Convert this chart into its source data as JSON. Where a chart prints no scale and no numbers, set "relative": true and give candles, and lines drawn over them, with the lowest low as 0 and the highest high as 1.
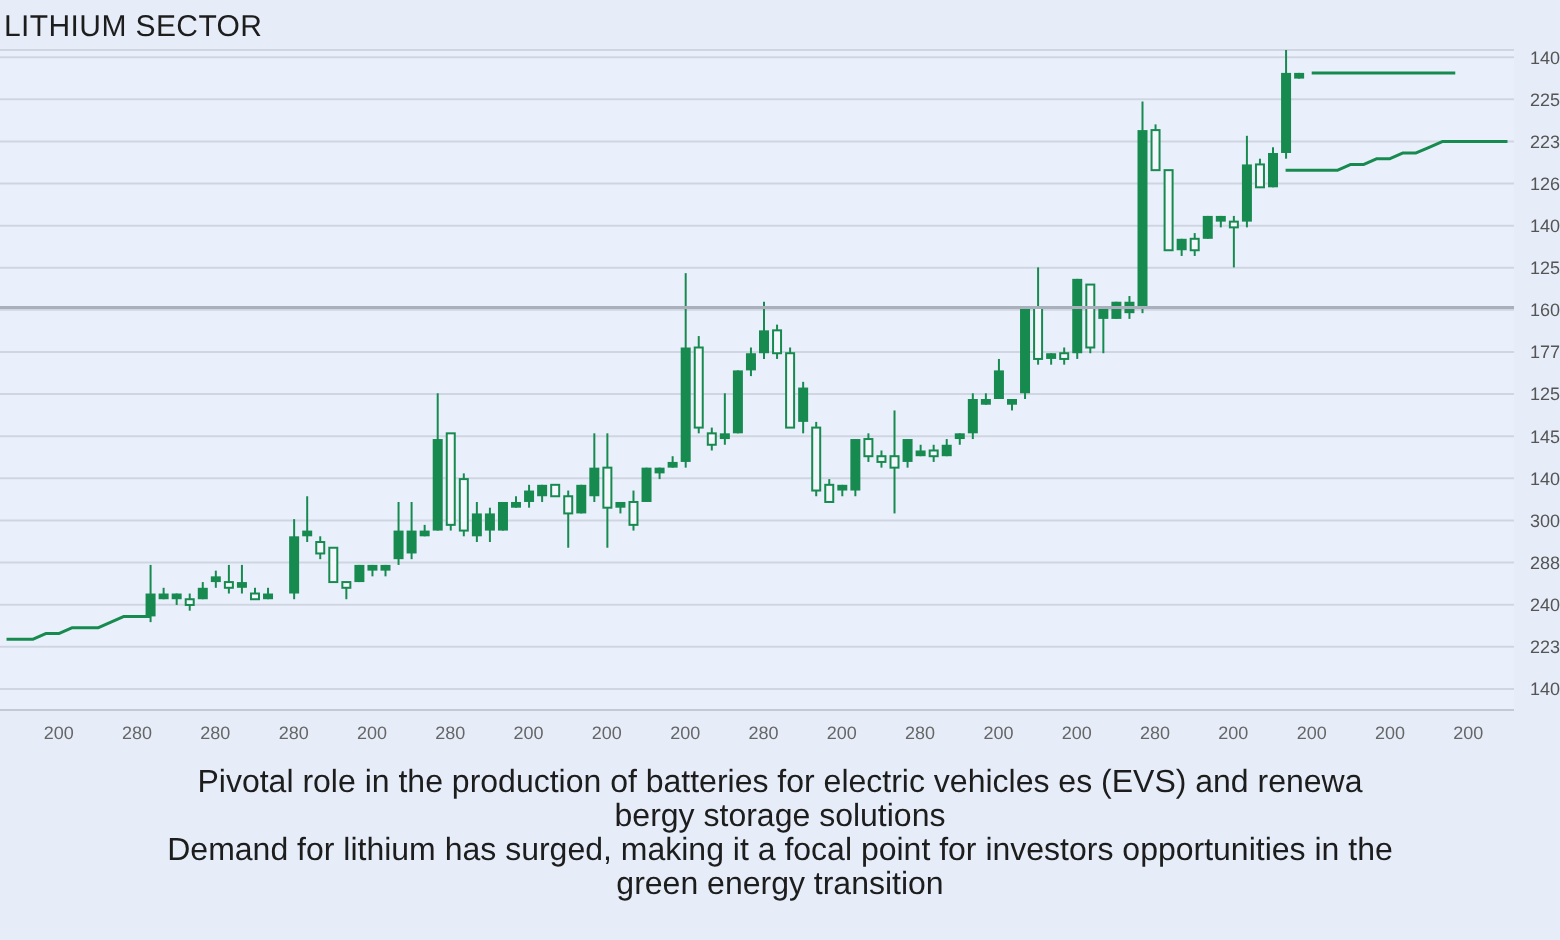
{
  "chart_data": {
    "type": "candlestick",
    "title": "LITHIUM SECTOR",
    "relative": true,
    "annotations": [
      "Pivotal role in the production of batteries for electric vehicles es (EVS) and renewa bergy storage solutions",
      "Demand for lithium has surged, making it a focal point for investors opportunities in the green energy transition",
      "140",
      "225",
      "223",
      "126",
      "140",
      "125",
      "160",
      "177",
      "125",
      "145",
      "140",
      "300",
      "288",
      "240",
      "223",
      "140"
    ],
    "categories": [
      null,
      null,
      null,
      null,
      "200",
      null,
      null,
      null,
      null,
      null,
      "280",
      null,
      null,
      null,
      null,
      null,
      "280",
      null,
      null,
      null,
      null,
      null,
      "280",
      null,
      null,
      null,
      null,
      null,
      "200",
      null,
      null,
      null,
      null,
      null,
      "280",
      null,
      null,
      null,
      null,
      null,
      "200",
      null,
      null,
      null,
      null,
      null,
      "200",
      null,
      null,
      null,
      null,
      null,
      "200",
      null,
      null,
      null,
      null,
      null,
      "280",
      null,
      null,
      null,
      null,
      null,
      "200",
      null,
      null,
      null,
      null,
      null,
      "280",
      null,
      null,
      null,
      null,
      null,
      "200",
      null,
      null,
      null,
      null,
      null,
      "200",
      null,
      null,
      null,
      null,
      null,
      "280",
      null,
      null,
      null,
      null,
      null,
      "200",
      null,
      null,
      null,
      null,
      null,
      "200",
      null,
      null,
      null,
      null,
      null,
      "200",
      null,
      null,
      null,
      null,
      null,
      "200",
      null,
      null,
      null
    ],
    "color": "#178a50",
    "ohlc": [
      null,
      null,
      null,
      null,
      null,
      null,
      null,
      null,
      null,
      null,
      null,
      [
        0.01,
        0.1,
        0,
        0.05
      ],
      [
        0.04,
        0.06,
        0.04,
        0.05
      ],
      [
        0.04,
        0.05,
        0.03,
        0.05
      ],
      [
        0.04,
        0.05,
        0.02,
        0.03
      ],
      [
        0.04,
        0.07,
        0.04,
        0.06
      ],
      [
        0.07,
        0.09,
        0.06,
        0.08
      ],
      [
        0.07,
        0.1,
        0.05,
        0.06
      ],
      [
        0.06,
        0.1,
        0.05,
        0.07
      ],
      [
        0.05,
        0.06,
        0.04,
        0.04
      ],
      [
        0.04,
        0.06,
        0.04,
        0.05
      ],
      null,
      [
        0.05,
        0.18,
        0.04,
        0.15
      ],
      [
        0.15,
        0.22,
        0.14,
        0.16
      ],
      [
        0.14,
        0.15,
        0.11,
        0.12
      ],
      [
        0.13,
        0.13,
        0.07,
        0.07
      ],
      [
        0.07,
        0.07,
        0.04,
        0.06
      ],
      [
        0.07,
        0.1,
        0.07,
        0.1
      ],
      [
        0.09,
        0.1,
        0.08,
        0.1
      ],
      [
        0.09,
        0.1,
        0.08,
        0.1
      ],
      [
        0.11,
        0.21,
        0.1,
        0.16
      ],
      [
        0.12,
        0.21,
        0.11,
        0.16
      ],
      [
        0.15,
        0.17,
        0.15,
        0.16
      ],
      [
        0.16,
        0.4,
        0.16,
        0.32
      ],
      [
        0.33,
        0.33,
        0.16,
        0.17
      ],
      [
        0.25,
        0.26,
        0.15,
        0.16
      ],
      [
        0.15,
        0.21,
        0.14,
        0.19
      ],
      [
        0.16,
        0.2,
        0.14,
        0.19
      ],
      [
        0.16,
        0.21,
        0.16,
        0.21
      ],
      [
        0.2,
        0.22,
        0.2,
        0.21
      ],
      [
        0.21,
        0.24,
        0.2,
        0.23
      ],
      [
        0.22,
        0.24,
        0.21,
        0.24
      ],
      [
        0.24,
        0.24,
        0.22,
        0.22
      ],
      [
        0.22,
        0.23,
        0.13,
        0.19
      ],
      [
        0.19,
        0.24,
        0.19,
        0.24
      ],
      [
        0.22,
        0.33,
        0.21,
        0.27
      ],
      [
        0.27,
        0.33,
        0.13,
        0.2
      ],
      [
        0.2,
        0.21,
        0.19,
        0.21
      ],
      [
        0.21,
        0.23,
        0.16,
        0.17
      ],
      [
        0.21,
        0.27,
        0.21,
        0.27
      ],
      [
        0.26,
        0.27,
        0.25,
        0.27
      ],
      [
        0.27,
        0.29,
        0.27,
        0.28
      ],
      [
        0.28,
        0.61,
        0.27,
        0.48
      ],
      [
        0.48,
        0.5,
        0.33,
        0.34
      ],
      [
        0.33,
        0.34,
        0.3,
        0.31
      ],
      [
        0.32,
        0.4,
        0.31,
        0.33
      ],
      [
        0.33,
        0.44,
        0.33,
        0.44
      ],
      [
        0.44,
        0.48,
        0.43,
        0.47
      ],
      [
        0.47,
        0.56,
        0.46,
        0.51
      ],
      [
        0.51,
        0.52,
        0.46,
        0.47
      ],
      [
        0.47,
        0.48,
        0.34,
        0.34
      ],
      [
        0.35,
        0.42,
        0.33,
        0.41
      ],
      [
        0.34,
        0.35,
        0.22,
        0.23
      ],
      [
        0.24,
        0.25,
        0.21,
        0.21
      ],
      [
        0.23,
        0.24,
        0.22,
        0.24
      ],
      [
        0.23,
        0.32,
        0.22,
        0.32
      ],
      [
        0.32,
        0.33,
        0.28,
        0.29
      ],
      [
        0.29,
        0.3,
        0.27,
        0.28
      ],
      [
        0.29,
        0.37,
        0.19,
        0.27
      ],
      [
        0.28,
        0.32,
        0.27,
        0.32
      ],
      [
        0.29,
        0.31,
        0.29,
        0.3
      ],
      [
        0.3,
        0.31,
        0.28,
        0.29
      ],
      [
        0.29,
        0.32,
        0.29,
        0.31
      ],
      [
        0.32,
        0.33,
        0.31,
        0.33
      ],
      [
        0.33,
        0.4,
        0.32,
        0.39
      ],
      [
        0.38,
        0.4,
        0.38,
        0.39
      ],
      [
        0.39,
        0.46,
        0.39,
        0.44
      ],
      [
        0.38,
        0.39,
        0.37,
        0.39
      ],
      [
        0.4,
        0.55,
        0.39,
        0.55
      ],
      [
        0.55,
        0.62,
        0.45,
        0.46
      ],
      [
        0.46,
        0.47,
        0.45,
        0.47
      ],
      [
        0.47,
        0.48,
        0.45,
        0.46
      ],
      [
        0.47,
        0.6,
        0.46,
        0.6
      ],
      [
        0.59,
        0.59,
        0.47,
        0.48
      ],
      [
        0.53,
        0.55,
        0.47,
        0.55
      ],
      [
        0.53,
        0.56,
        0.53,
        0.56
      ],
      [
        0.54,
        0.57,
        0.53,
        0.56
      ],
      [
        0.55,
        0.91,
        0.54,
        0.86
      ],
      [
        0.86,
        0.87,
        0.79,
        0.79
      ],
      [
        0.79,
        0.79,
        0.65,
        0.65
      ],
      [
        0.65,
        0.67,
        0.64,
        0.67
      ],
      [
        0.67,
        0.68,
        0.64,
        0.65
      ],
      [
        0.67,
        0.71,
        0.67,
        0.71
      ],
      [
        0.7,
        0.71,
        0.69,
        0.71
      ],
      [
        0.7,
        0.71,
        0.62,
        0.69
      ],
      [
        0.7,
        0.85,
        0.69,
        0.8
      ],
      [
        0.8,
        0.81,
        0.76,
        0.76
      ],
      [
        0.76,
        0.83,
        0.76,
        0.82
      ],
      [
        0.82,
        1,
        0.81,
        0.96
      ],
      [
        0.95,
        0.96,
        0.95,
        0.96
      ],
      null,
      null,
      null,
      null,
      null,
      null,
      null,
      null,
      null,
      null,
      null,
      null,
      null,
      null,
      null,
      null
    ],
    "series": [
      {
        "type": "line",
        "color": "#178a50",
        "values": [
          -0.03,
          -0.03,
          -0.03,
          -0.02,
          -0.02,
          -0.01,
          -0.01,
          -0.01,
          0,
          0.01,
          0.01,
          0.01,
          null,
          null,
          null,
          null,
          null,
          null,
          null,
          null,
          null,
          null,
          null,
          null,
          null,
          null,
          null,
          null,
          null,
          null,
          null,
          null,
          null,
          null,
          null,
          null,
          null,
          null,
          null,
          null,
          null,
          null,
          null,
          null,
          null,
          null,
          null,
          null,
          null,
          null,
          null,
          null,
          null,
          null,
          null,
          null,
          null,
          null,
          null,
          null,
          null,
          null,
          null,
          null,
          null,
          null,
          null,
          null,
          null,
          null,
          null,
          null,
          null,
          null,
          null,
          null,
          null,
          null,
          null,
          null,
          null,
          null,
          null,
          null,
          null,
          null,
          null,
          null,
          null,
          null,
          null,
          null,
          null,
          null,
          null,
          null,
          null,
          null,
          null,
          null,
          null,
          null,
          null,
          null,
          null,
          null,
          null,
          null,
          null,
          null,
          null,
          null,
          null,
          null,
          null,
          null
        ]
      },
      {
        "type": "line",
        "color": "#178a50",
        "values": [
          null,
          null,
          null,
          null,
          null,
          null,
          null,
          null,
          null,
          null,
          null,
          null,
          null,
          null,
          null,
          null,
          null,
          null,
          null,
          null,
          null,
          null,
          null,
          null,
          null,
          null,
          null,
          null,
          null,
          null,
          null,
          null,
          null,
          null,
          null,
          null,
          null,
          null,
          null,
          null,
          null,
          null,
          null,
          null,
          null,
          null,
          null,
          null,
          null,
          null,
          null,
          null,
          null,
          null,
          null,
          null,
          null,
          null,
          null,
          null,
          null,
          null,
          null,
          null,
          null,
          null,
          null,
          null,
          null,
          null,
          null,
          null,
          null,
          null,
          null,
          null,
          null,
          null,
          null,
          null,
          null,
          null,
          null,
          null,
          null,
          null,
          null,
          null,
          null,
          null,
          null,
          null,
          null,
          null,
          null,
          null,
          null,
          null,
          0.79,
          0.79,
          0.79,
          0.79,
          0.79,
          0.8,
          0.8,
          0.81,
          0.81,
          0.82,
          0.82,
          0.83,
          0.84,
          0.84,
          0.84,
          0.84,
          0.84,
          0.84
        ]
      },
      {
        "type": "line",
        "color": "#178a50",
        "values": [
          null,
          null,
          null,
          null,
          null,
          null,
          null,
          null,
          null,
          null,
          null,
          null,
          null,
          null,
          null,
          null,
          null,
          null,
          null,
          null,
          null,
          null,
          null,
          null,
          null,
          null,
          null,
          null,
          null,
          null,
          null,
          null,
          null,
          null,
          null,
          null,
          null,
          null,
          null,
          null,
          null,
          null,
          null,
          null,
          null,
          null,
          null,
          null,
          null,
          null,
          null,
          null,
          null,
          null,
          null,
          null,
          null,
          null,
          null,
          null,
          null,
          null,
          null,
          null,
          null,
          null,
          null,
          null,
          null,
          null,
          null,
          null,
          null,
          null,
          null,
          null,
          null,
          null,
          null,
          null,
          null,
          null,
          null,
          null,
          null,
          null,
          null,
          null,
          null,
          null,
          null,
          null,
          null,
          null,
          null,
          null,
          null,
          null,
          null,
          null,
          0.96,
          0.96,
          0.96,
          0.96,
          0.96,
          0.96,
          0.96,
          0.96,
          0.96,
          0.96,
          0.96,
          0.96,
          null,
          null,
          null,
          null
        ]
      }
    ],
    "ref_lines": [
      {
        "axis": "y",
        "value": 0.55,
        "color": "#a9b0bb"
      }
    ],
    "grid": "y"
  }
}
